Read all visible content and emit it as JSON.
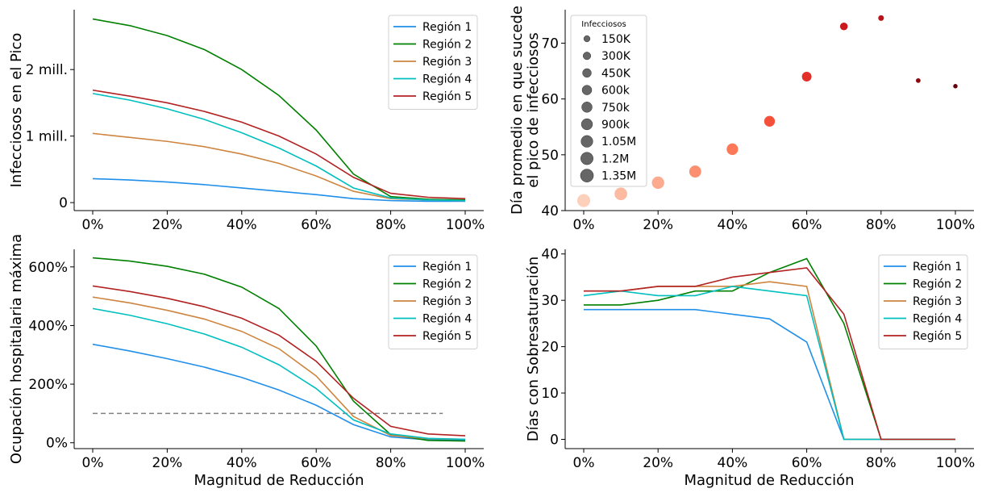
{
  "xlabel": "Magnitud de Reducción",
  "chart_data": [
    {
      "type": "line",
      "ylabel": "Infecciosos en el Pico",
      "x": [
        0,
        10,
        20,
        30,
        40,
        50,
        60,
        70,
        80,
        90,
        100
      ],
      "x_tick_labels": [
        "0%",
        "20%",
        "40%",
        "60%",
        "80%",
        "100%"
      ],
      "y_ticks": [
        0,
        1,
        2
      ],
      "y_tick_labels": [
        "0",
        "1 mill.",
        "2 mill."
      ],
      "ylim": [
        -0.12,
        2.9
      ],
      "legend_position": "upper right",
      "grid": false,
      "series": [
        {
          "name": "Región 1",
          "color": "#1f8fea",
          "values": [
            0.36,
            0.34,
            0.31,
            0.27,
            0.22,
            0.17,
            0.12,
            0.06,
            0.03,
            0.02,
            0.02
          ]
        },
        {
          "name": "Región 2",
          "color": "#008000",
          "values": [
            2.76,
            2.66,
            2.51,
            2.3,
            2.0,
            1.61,
            1.09,
            0.43,
            0.09,
            0.05,
            0.04
          ]
        },
        {
          "name": "Región 3",
          "color": "#cd853f",
          "values": [
            1.04,
            0.98,
            0.92,
            0.84,
            0.73,
            0.59,
            0.4,
            0.17,
            0.06,
            0.04,
            0.03
          ]
        },
        {
          "name": "Región 4",
          "color": "#00bfbf",
          "values": [
            1.64,
            1.54,
            1.41,
            1.25,
            1.05,
            0.82,
            0.55,
            0.22,
            0.07,
            0.04,
            0.03
          ]
        },
        {
          "name": "Región 5",
          "color": "#b22222",
          "values": [
            1.69,
            1.6,
            1.5,
            1.37,
            1.21,
            1.0,
            0.73,
            0.38,
            0.14,
            0.08,
            0.06
          ]
        }
      ]
    },
    {
      "type": "scatter",
      "ylabel_lines": [
        "Día promedio en que sucede",
        "el pico de infecciosos"
      ],
      "x": [
        0,
        10,
        20,
        30,
        40,
        50,
        60,
        70,
        80,
        90,
        100
      ],
      "x_tick_labels": [
        "0%",
        "20%",
        "40%",
        "60%",
        "80%",
        "100%"
      ],
      "y_ticks": [
        40,
        50,
        60,
        70
      ],
      "ylim": [
        40,
        76
      ],
      "values": [
        41.8,
        43.0,
        45.0,
        47.0,
        51.0,
        56.0,
        64.0,
        73.0,
        74.5,
        63.3,
        62.3
      ],
      "sizes_infectious_millions": [
        1.32,
        1.25,
        1.17,
        1.08,
        0.96,
        0.8,
        0.59,
        0.3,
        0.1,
        0.04,
        0.03
      ],
      "colors": [
        "#fdd0bb",
        "#fcbba1",
        "#fcab8f",
        "#fc8f6f",
        "#fb7858",
        "#f4503a",
        "#e32f27",
        "#cb181d",
        "#b71319",
        "#8b0911",
        "#67000d"
      ],
      "legend_title": "Infecciosos",
      "legend_position": "upper left",
      "legend_labels": [
        "150K",
        "300K",
        "450K",
        "600k",
        "750k",
        "900k",
        "1.05M",
        "1.2M",
        "1.35M"
      ],
      "legend_values_millions": [
        0.15,
        0.3,
        0.45,
        0.6,
        0.75,
        0.9,
        1.05,
        1.2,
        1.35
      ]
    },
    {
      "type": "line",
      "ylabel": "Ocupación hospitalaria máxima",
      "x": [
        0,
        10,
        20,
        30,
        40,
        50,
        60,
        70,
        80,
        90,
        100
      ],
      "x_tick_labels": [
        "0%",
        "20%",
        "40%",
        "60%",
        "80%",
        "100%"
      ],
      "y_ticks": [
        0,
        200,
        400,
        600
      ],
      "y_tick_labels": [
        "0%",
        "200%",
        "400%",
        "600%"
      ],
      "ylim": [
        -20,
        660
      ],
      "legend_position": "upper right",
      "reference_line": {
        "y": 100,
        "x_range": [
          0,
          94
        ],
        "style": "dashed",
        "color": "#808080"
      },
      "series": [
        {
          "name": "Región 1",
          "color": "#1f8fea",
          "values": [
            336,
            313,
            287,
            258,
            223,
            180,
            128,
            62,
            20,
            10,
            8
          ]
        },
        {
          "name": "Región 2",
          "color": "#008000",
          "values": [
            631,
            620,
            602,
            575,
            531,
            458,
            330,
            142,
            28,
            8,
            6
          ]
        },
        {
          "name": "Región 3",
          "color": "#cd853f",
          "values": [
            497,
            477,
            452,
            422,
            380,
            321,
            228,
            90,
            25,
            14,
            12
          ]
        },
        {
          "name": "Región 4",
          "color": "#00bfbf",
          "values": [
            458,
            435,
            406,
            371,
            326,
            266,
            185,
            78,
            30,
            15,
            12
          ]
        },
        {
          "name": "Región 5",
          "color": "#b22222",
          "values": [
            535,
            516,
            493,
            464,
            425,
            367,
            278,
            152,
            56,
            30,
            24
          ]
        }
      ]
    },
    {
      "type": "line",
      "ylabel": "Días con Sobresaturación",
      "x": [
        0,
        10,
        20,
        30,
        40,
        50,
        60,
        70,
        80,
        90,
        100
      ],
      "x_tick_labels": [
        "0%",
        "20%",
        "40%",
        "60%",
        "80%",
        "100%"
      ],
      "y_ticks": [
        0,
        10,
        20,
        30,
        40
      ],
      "ylim": [
        -2,
        41
      ],
      "legend_position": "upper right",
      "series": [
        {
          "name": "Región 1",
          "color": "#1f8fea",
          "values": [
            28,
            28,
            28,
            28,
            27,
            26,
            21,
            0,
            0,
            0,
            0
          ]
        },
        {
          "name": "Región 2",
          "color": "#008000",
          "values": [
            29,
            29,
            30,
            32,
            32,
            36,
            39,
            25,
            0,
            0,
            0
          ]
        },
        {
          "name": "Región 3",
          "color": "#cd853f",
          "values": [
            32,
            32,
            33,
            33,
            33,
            34,
            33,
            0,
            0,
            0,
            0
          ]
        },
        {
          "name": "Región 4",
          "color": "#00bfbf",
          "values": [
            31,
            32,
            31,
            31,
            33,
            32,
            31,
            0,
            0,
            0,
            0
          ]
        },
        {
          "name": "Región 5",
          "color": "#b22222",
          "values": [
            32,
            32,
            33,
            33,
            35,
            36,
            37,
            27,
            0,
            0,
            0
          ]
        }
      ]
    }
  ]
}
